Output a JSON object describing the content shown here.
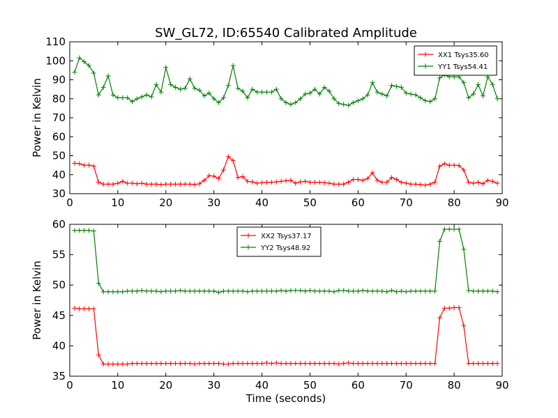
{
  "figure": {
    "title": "SW_GL72, ID:65540 Calibrated Amplitude"
  },
  "colors": {
    "xx": "#ff0000",
    "yy": "#008000"
  },
  "chart_data": [
    {
      "type": "line",
      "title": "SW_GL72, ID:65540 Calibrated Amplitude",
      "xlabel": "",
      "ylabel": "Power in Kelvin",
      "xlim": [
        0,
        90
      ],
      "ylim": [
        30,
        110
      ],
      "xticks": [
        0,
        10,
        20,
        30,
        40,
        50,
        60,
        70,
        80,
        90
      ],
      "yticks": [
        30,
        40,
        50,
        60,
        70,
        80,
        90,
        100,
        110
      ],
      "legend_position": "top-right",
      "x": [
        1,
        2,
        3,
        4,
        5,
        6,
        7,
        8,
        9,
        10,
        11,
        12,
        13,
        14,
        15,
        16,
        17,
        18,
        19,
        20,
        21,
        22,
        23,
        24,
        25,
        26,
        27,
        28,
        29,
        30,
        31,
        32,
        33,
        34,
        35,
        36,
        37,
        38,
        39,
        40,
        41,
        42,
        43,
        44,
        45,
        46,
        47,
        48,
        49,
        50,
        51,
        52,
        53,
        54,
        55,
        56,
        57,
        58,
        59,
        60,
        61,
        62,
        63,
        64,
        65,
        66,
        67,
        68,
        69,
        70,
        71,
        72,
        73,
        74,
        75,
        76,
        77,
        78,
        79,
        80,
        81,
        82,
        83,
        84,
        85,
        86,
        87,
        88,
        89
      ],
      "series": [
        {
          "name": "XX1 Tsys35.60",
          "color": "#ff0000",
          "values": [
            46,
            45.8,
            45,
            45,
            44.5,
            36,
            35,
            35,
            35,
            35.5,
            36.5,
            35.5,
            35.5,
            35.2,
            35.5,
            35,
            35,
            35,
            34.8,
            35,
            35,
            35,
            35,
            35,
            35,
            34.8,
            35.2,
            37,
            39.5,
            39.2,
            38,
            42.5,
            49.5,
            47.5,
            38.5,
            39,
            36.5,
            36.2,
            35.5,
            35.8,
            36,
            36,
            36.2,
            36.5,
            36.8,
            37,
            35.5,
            36.2,
            36.5,
            36,
            36,
            36,
            35.8,
            35.5,
            35,
            35,
            35,
            36,
            37.5,
            37.5,
            37,
            38,
            41,
            37,
            36,
            36,
            38.5,
            37.5,
            36,
            35.5,
            35,
            35,
            34.8,
            34.5,
            35,
            36,
            44.5,
            45.8,
            45,
            45,
            44.8,
            42.5,
            36,
            35.5,
            36,
            35.2,
            37,
            36.5,
            35.5
          ]
        },
        {
          "name": "YY1 Tsys54.41",
          "color": "#008000",
          "values": [
            94,
            101.5,
            99.5,
            97.5,
            93.5,
            82,
            86,
            92,
            82,
            80.5,
            80.5,
            80.5,
            78.5,
            80,
            81,
            82,
            81,
            87.5,
            83.5,
            96.5,
            87.5,
            86,
            85,
            85.5,
            90.5,
            85.5,
            84.5,
            81.5,
            83,
            80,
            78,
            80.5,
            87,
            97.5,
            85.5,
            84,
            80.5,
            85,
            83.5,
            83.5,
            83.5,
            83.5,
            85,
            80,
            78,
            77,
            78,
            80,
            82.5,
            83,
            85,
            82.5,
            86,
            84,
            80,
            77.5,
            77,
            76.5,
            78,
            79,
            80,
            82,
            88.5,
            83.5,
            82.5,
            81.5,
            87,
            86.5,
            86,
            83,
            82.5,
            82,
            80.5,
            79,
            78.5,
            80,
            91,
            92.5,
            91.5,
            91.5,
            91.5,
            88.5,
            80.5,
            82.5,
            87.5,
            81.5,
            91.5,
            87.5,
            80
          ]
        }
      ]
    },
    {
      "type": "line",
      "title": "",
      "xlabel": "Time (seconds)",
      "ylabel": "Power in Kelvin",
      "xlim": [
        0,
        90
      ],
      "ylim": [
        35,
        60
      ],
      "xticks": [
        0,
        10,
        20,
        30,
        40,
        50,
        60,
        70,
        80,
        90
      ],
      "yticks": [
        35,
        40,
        45,
        50,
        55,
        60
      ],
      "legend_position": "upper-center",
      "x": [
        1,
        2,
        3,
        4,
        5,
        6,
        7,
        8,
        9,
        10,
        11,
        12,
        13,
        14,
        15,
        16,
        17,
        18,
        19,
        20,
        21,
        22,
        23,
        24,
        25,
        26,
        27,
        28,
        29,
        30,
        31,
        32,
        33,
        34,
        35,
        36,
        37,
        38,
        39,
        40,
        41,
        42,
        43,
        44,
        45,
        46,
        47,
        48,
        49,
        50,
        51,
        52,
        53,
        54,
        55,
        56,
        57,
        58,
        59,
        60,
        61,
        62,
        63,
        64,
        65,
        66,
        67,
        68,
        69,
        70,
        71,
        72,
        73,
        74,
        75,
        76,
        77,
        78,
        79,
        80,
        81,
        82,
        83,
        84,
        85,
        86,
        87,
        88,
        89
      ],
      "series": [
        {
          "name": "XX2 Tsys37.17",
          "color": "#ff0000",
          "values": [
            46.2,
            46.1,
            46.1,
            46.1,
            46.1,
            38.5,
            37,
            37,
            37,
            37,
            37,
            37,
            37.1,
            37.1,
            37.1,
            37.1,
            37.1,
            37.1,
            37.1,
            37.1,
            37.1,
            37.1,
            37.1,
            37.1,
            37.1,
            37,
            37.1,
            37.1,
            37.1,
            37.1,
            37.1,
            37,
            37,
            37.1,
            37.1,
            37.1,
            37.1,
            37.1,
            37.1,
            37.1,
            37.2,
            37.1,
            37.2,
            37.1,
            37.1,
            37.1,
            37.1,
            37.1,
            37.1,
            37.1,
            37.1,
            37.1,
            37.1,
            37.1,
            37.1,
            37,
            37.1,
            37.2,
            37.1,
            37.1,
            37.1,
            37.1,
            37.1,
            37.1,
            37.1,
            37.1,
            37.1,
            37.1,
            37.1,
            37.1,
            37.1,
            37.1,
            37.1,
            37.1,
            37.1,
            37.1,
            44.6,
            46.2,
            46.2,
            46.3,
            46.3,
            43.3,
            37.1,
            37.1,
            37.1,
            37.1,
            37.1,
            37.1,
            37.1
          ]
        },
        {
          "name": "YY2 Tsys48.92",
          "color": "#008000",
          "values": [
            59,
            59,
            59,
            59,
            58.9,
            50.3,
            48.9,
            48.9,
            48.9,
            48.9,
            48.9,
            49,
            49,
            49,
            49.1,
            49,
            49,
            49,
            48.9,
            49,
            49,
            49,
            49.1,
            49,
            49,
            49,
            49,
            49,
            49,
            49,
            48.8,
            49,
            49,
            49,
            49,
            49,
            48.9,
            49,
            49,
            49,
            49,
            49,
            49,
            49.1,
            49,
            49.1,
            49.1,
            49.1,
            49,
            49.1,
            49,
            49,
            49,
            49,
            48.9,
            49.1,
            49.1,
            49,
            49,
            49,
            49.1,
            49,
            49,
            49,
            49,
            48.9,
            49.1,
            48.9,
            49,
            48.9,
            49,
            49,
            49,
            49,
            49,
            49,
            57.2,
            59.2,
            59.2,
            59.2,
            59.2,
            55.9,
            49.1,
            49,
            49,
            49,
            49,
            49,
            48.9
          ]
        }
      ]
    }
  ]
}
